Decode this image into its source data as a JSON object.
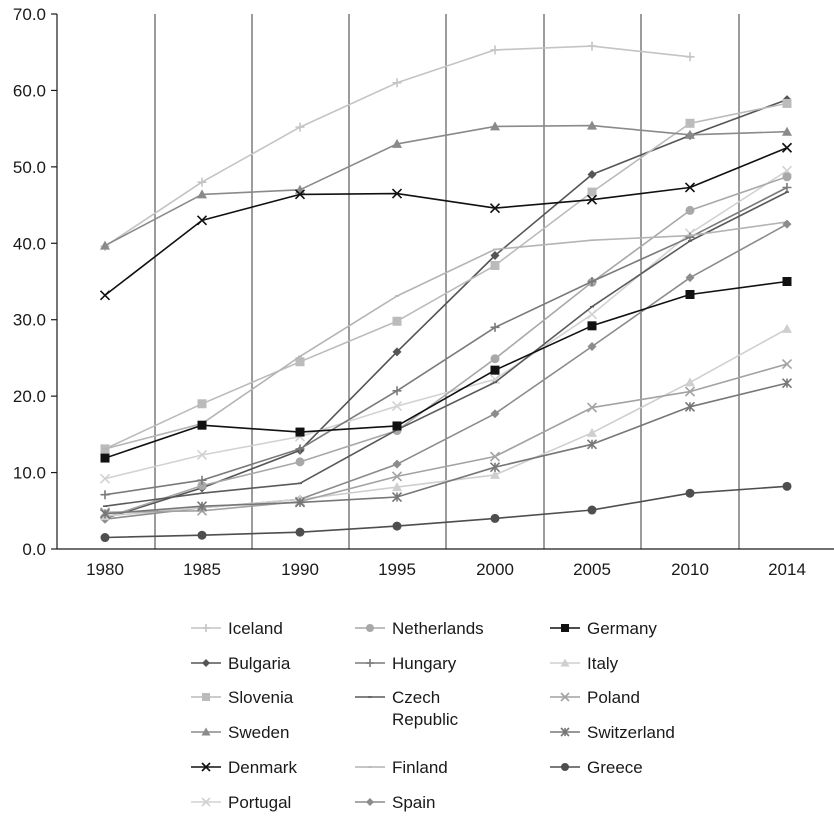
{
  "chart_data": {
    "type": "line",
    "title": "",
    "xlabel": "",
    "ylabel": "",
    "categories": [
      "1980",
      "1985",
      "1990",
      "1995",
      "2000",
      "2005",
      "2010",
      "2014"
    ],
    "ylim": [
      0,
      70
    ],
    "yticks": [
      "0.0",
      "10.0",
      "20.0",
      "30.0",
      "40.0",
      "50.0",
      "60.0",
      "70.0"
    ],
    "grid": "vertical",
    "legend_position": "bottom",
    "series": [
      {
        "name": "Iceland",
        "color": "#c4c4c4",
        "marker": "plus",
        "values": [
          39.6,
          48.0,
          55.2,
          61.0,
          65.3,
          65.8,
          64.4,
          null
        ]
      },
      {
        "name": "Bulgaria",
        "color": "#555555",
        "marker": "diamond",
        "values": [
          4.0,
          8.0,
          12.9,
          25.8,
          38.4,
          49.0,
          54.1,
          58.8
        ]
      },
      {
        "name": "Slovenia",
        "color": "#bbbbbb",
        "marker": "square",
        "values": [
          13.1,
          19.0,
          24.5,
          29.8,
          37.1,
          46.7,
          55.7,
          58.3
        ]
      },
      {
        "name": "Sweden",
        "color": "#8a8a8a",
        "marker": "triangle",
        "values": [
          39.7,
          46.4,
          47.0,
          53.0,
          55.3,
          55.4,
          54.2,
          54.6
        ]
      },
      {
        "name": "Denmark",
        "color": "#111111",
        "marker": "x",
        "values": [
          33.2,
          43.0,
          46.4,
          46.5,
          44.6,
          45.7,
          47.3,
          52.5
        ]
      },
      {
        "name": "Portugal",
        "color": "#d2d2d2",
        "marker": "x",
        "values": [
          9.2,
          12.3,
          14.7,
          18.7,
          22.2,
          30.7,
          41.3,
          49.5
        ]
      },
      {
        "name": "Netherlands",
        "color": "#a8a8a8",
        "marker": "circle",
        "values": [
          4.1,
          8.3,
          11.4,
          15.5,
          24.9,
          34.9,
          44.3,
          48.7
        ]
      },
      {
        "name": "Hungary",
        "color": "#7a7a7a",
        "marker": "plus",
        "values": [
          7.1,
          9.0,
          13.1,
          20.7,
          29.0,
          35.0,
          40.8,
          47.3
        ]
      },
      {
        "name": "Czech Republic",
        "color": "#5a5a5a",
        "marker": "dash",
        "values": [
          5.6,
          7.3,
          8.6,
          15.6,
          21.8,
          31.7,
          40.3,
          46.7
        ]
      },
      {
        "name": "Finland",
        "color": "#b4b4b4",
        "marker": "dash",
        "values": [
          13.1,
          16.4,
          25.2,
          33.1,
          39.2,
          40.4,
          41.0,
          42.8
        ]
      },
      {
        "name": "Spain",
        "color": "#8c8c8c",
        "marker": "diamond",
        "values": [
          3.9,
          5.4,
          6.5,
          11.1,
          17.7,
          26.5,
          35.5,
          42.5
        ]
      },
      {
        "name": "Germany",
        "color": "#111111",
        "marker": "square",
        "values": [
          11.9,
          16.2,
          15.3,
          16.1,
          23.4,
          29.2,
          33.3,
          35.0
        ]
      },
      {
        "name": "Italy",
        "color": "#cfcfcf",
        "marker": "triangle",
        "values": [
          4.3,
          5.4,
          6.5,
          8.1,
          9.7,
          15.2,
          21.8,
          28.8
        ]
      },
      {
        "name": "Poland",
        "color": "#a2a2a2",
        "marker": "x",
        "values": [
          4.8,
          5.0,
          6.2,
          9.5,
          12.1,
          18.5,
          20.6,
          24.2
        ]
      },
      {
        "name": "Switzerland",
        "color": "#777777",
        "marker": "star",
        "values": [
          4.6,
          5.6,
          6.1,
          6.8,
          10.7,
          13.7,
          18.6,
          21.7
        ]
      },
      {
        "name": "Greece",
        "color": "#4e4e4e",
        "marker": "circle",
        "values": [
          1.5,
          1.8,
          2.2,
          3.0,
          4.0,
          5.1,
          7.3,
          8.2
        ]
      }
    ],
    "legend_columns": [
      [
        "Iceland",
        "Bulgaria",
        "Slovenia",
        "Sweden",
        "Denmark",
        "Portugal"
      ],
      [
        "Netherlands",
        "Hungary",
        "Czech Republic",
        "Finland",
        "Spain"
      ],
      [
        "Germany",
        "Italy",
        "Poland",
        "Switzerland",
        "Greece"
      ]
    ]
  }
}
